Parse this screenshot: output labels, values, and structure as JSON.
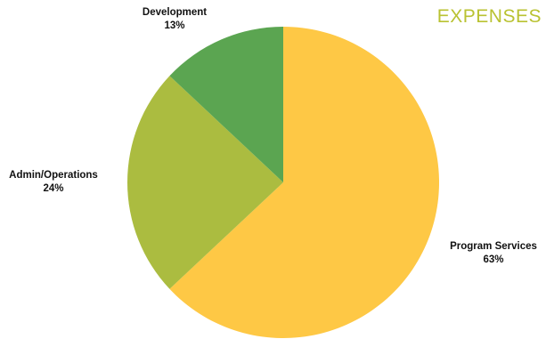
{
  "chart_data": {
    "type": "pie",
    "title": "EXPENSES",
    "title_color": "#b9c232",
    "slices": [
      {
        "label": "Program Services",
        "value": 63,
        "value_label": "63%",
        "color": "#fec845"
      },
      {
        "label": "Admin/Operations",
        "value": 24,
        "value_label": "24%",
        "color": "#abbc40"
      },
      {
        "label": "Development",
        "value": 13,
        "value_label": "13%",
        "color": "#5ba551"
      }
    ],
    "start_angle_deg": 0,
    "direction": "clockwise",
    "legend": "none"
  }
}
